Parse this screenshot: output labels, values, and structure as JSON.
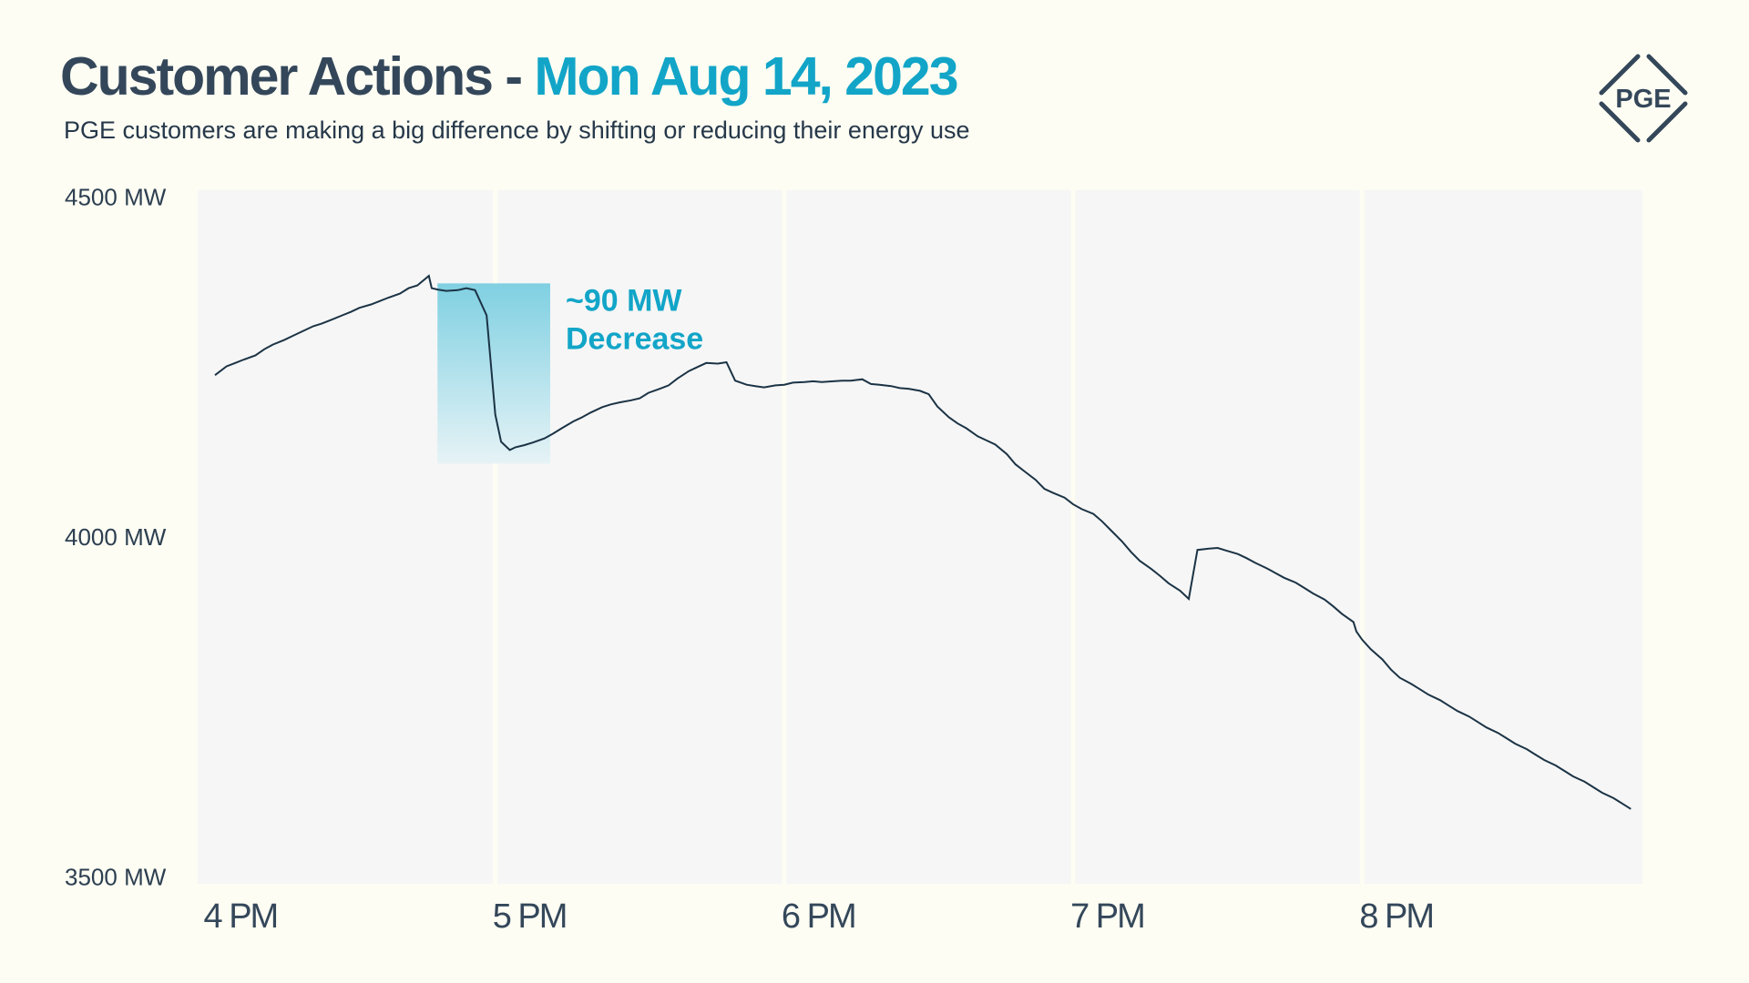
{
  "header": {
    "title_main": "Customer Actions -",
    "title_date": "Mon Aug 14, 2023",
    "subtitle": "PGE customers are making a big difference by shifting or reducing their energy use"
  },
  "logo": {
    "text": "PGE",
    "icon": "pge-logo-icon"
  },
  "colors": {
    "background": "#fdfdf3",
    "plot_background": "#f6f6f6",
    "title": "#34475a",
    "accent": "#12a5c8",
    "line": "#1b3345"
  },
  "chart_data": {
    "type": "line",
    "title": "Customer Actions - Mon Aug 14, 2023",
    "xlabel": "",
    "ylabel": "",
    "y_ticks": [
      {
        "value": 4500,
        "label": "4500 MW"
      },
      {
        "value": 4000,
        "label": "4000 MW"
      },
      {
        "value": 3500,
        "label": "3500 MW"
      }
    ],
    "x_ticks": [
      {
        "value": 16,
        "label": "4 PM"
      },
      {
        "value": 17,
        "label": "5 PM"
      },
      {
        "value": 18,
        "label": "6 PM"
      },
      {
        "value": 19,
        "label": "7 PM"
      },
      {
        "value": 20,
        "label": "8 PM"
      }
    ],
    "xlim": [
      15.97,
      20.97
    ],
    "ylim": [
      3490,
      4510
    ],
    "grid": "vertical",
    "series": [
      {
        "x": [
          16.03,
          16.07,
          16.1,
          16.13,
          16.17,
          16.2,
          16.23,
          16.27,
          16.3,
          16.33,
          16.37,
          16.4,
          16.43,
          16.47,
          16.5,
          16.53,
          16.57,
          16.6,
          16.63,
          16.67,
          16.7,
          16.73,
          16.77,
          16.78,
          16.8,
          16.83,
          16.87,
          16.9,
          16.93,
          16.97,
          17.0,
          17.02,
          17.05,
          17.07,
          17.1,
          17.13,
          17.17,
          17.2,
          17.23,
          17.27,
          17.3,
          17.33,
          17.37,
          17.4,
          17.43,
          17.47,
          17.5,
          17.53,
          17.57,
          17.6,
          17.63,
          17.67,
          17.7,
          17.73,
          17.77,
          17.8,
          17.83,
          17.87,
          17.9,
          17.93,
          17.97,
          18.0,
          18.03,
          18.07,
          18.1,
          18.13,
          18.17,
          18.2,
          18.23,
          18.27,
          18.3,
          18.33,
          18.37,
          18.4,
          18.43,
          18.47,
          18.5,
          18.53,
          18.57,
          18.6,
          18.63,
          18.67,
          18.7,
          18.73,
          18.77,
          18.8,
          18.83,
          18.87,
          18.9,
          18.93,
          18.97,
          19.0,
          19.03,
          19.07,
          19.1,
          19.13,
          19.17,
          19.2,
          19.23,
          19.27,
          19.3,
          19.33,
          19.37,
          19.4,
          19.43,
          19.47,
          19.5,
          19.53,
          19.57,
          19.6,
          19.63,
          19.67,
          19.7,
          19.73,
          19.77,
          19.8,
          19.83,
          19.87,
          19.9,
          19.93,
          19.97,
          19.98,
          20.0,
          20.03,
          20.07,
          20.1,
          20.13,
          20.17,
          20.2,
          20.23,
          20.27,
          20.3,
          20.33,
          20.37,
          20.4,
          20.43,
          20.47,
          20.5,
          20.53,
          20.57,
          20.6,
          20.63,
          20.67,
          20.7,
          20.73,
          20.77,
          20.8,
          20.83,
          20.87,
          20.9,
          20.93
        ],
        "y": [
          4238,
          4251,
          4256,
          4261,
          4267,
          4276,
          4283,
          4290,
          4296,
          4302,
          4310,
          4314,
          4319,
          4326,
          4331,
          4337,
          4342,
          4347,
          4352,
          4358,
          4366,
          4370,
          4384,
          4366,
          4364,
          4362,
          4363,
          4366,
          4363,
          4326,
          4180,
          4140,
          4128,
          4132,
          4135,
          4139,
          4145,
          4152,
          4160,
          4170,
          4176,
          4183,
          4191,
          4195,
          4198,
          4201,
          4204,
          4212,
          4218,
          4223,
          4233,
          4244,
          4250,
          4256,
          4255,
          4257,
          4230,
          4224,
          4222,
          4220,
          4223,
          4224,
          4227,
          4228,
          4229,
          4228,
          4229,
          4230,
          4230,
          4232,
          4225,
          4224,
          4222,
          4219,
          4218,
          4215,
          4210,
          4192,
          4176,
          4167,
          4160,
          4148,
          4142,
          4136,
          4122,
          4107,
          4097,
          4084,
          4071,
          4065,
          4058,
          4048,
          4041,
          4034,
          4023,
          4010,
          3993,
          3978,
          3965,
          3953,
          3943,
          3932,
          3921,
          3909,
          3981,
          3983,
          3984,
          3980,
          3975,
          3969,
          3962,
          3954,
          3947,
          3940,
          3933,
          3925,
          3917,
          3908,
          3898,
          3887,
          3875,
          3861,
          3849,
          3835,
          3820,
          3805,
          3793,
          3784,
          3776,
          3768,
          3760,
          3752,
          3744,
          3736,
          3728,
          3720,
          3712,
          3704,
          3696,
          3688,
          3680,
          3672,
          3664,
          3656,
          3648,
          3640,
          3632,
          3624,
          3616,
          3608,
          3600
        ]
      }
    ],
    "annotation": {
      "text_line1": "~90 MW",
      "text_line2": "Decrease",
      "x_start": 16.8,
      "x_end": 17.19,
      "y_top": 4373,
      "y_bottom": 4108
    }
  }
}
